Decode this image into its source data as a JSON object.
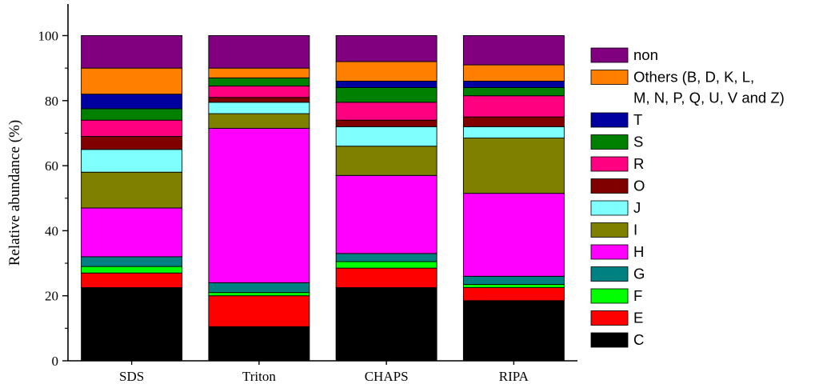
{
  "chart_data": {
    "type": "bar",
    "stacked": true,
    "title": "",
    "xlabel": "",
    "ylabel": "Relative abundance (%)",
    "ylim": [
      0,
      110
    ],
    "yticks": [
      0,
      20,
      40,
      60,
      80,
      100
    ],
    "categories": [
      "SDS",
      "Triton",
      "CHAPS",
      "RIPA"
    ],
    "legend_position": "right",
    "series": [
      {
        "name": "C",
        "color": "#000000",
        "values": [
          22.5,
          10.5,
          22.5,
          18.5
        ]
      },
      {
        "name": "E",
        "color": "#ff0000",
        "values": [
          4.5,
          9.5,
          6.0,
          4.0
        ]
      },
      {
        "name": "F",
        "color": "#00ff00",
        "values": [
          2.0,
          1.0,
          2.0,
          1.0
        ]
      },
      {
        "name": "G",
        "color": "#008080",
        "values": [
          3.0,
          3.0,
          2.5,
          2.5
        ]
      },
      {
        "name": "H",
        "color": "#ff00ff",
        "values": [
          15.0,
          47.5,
          24.0,
          25.5
        ]
      },
      {
        "name": "I",
        "color": "#808000",
        "values": [
          11.0,
          4.5,
          9.0,
          17.0
        ]
      },
      {
        "name": "J",
        "color": "#80ffff",
        "values": [
          7.0,
          3.5,
          6.0,
          3.5
        ]
      },
      {
        "name": "O",
        "color": "#800000",
        "values": [
          4.0,
          1.5,
          2.0,
          3.0
        ]
      },
      {
        "name": "R",
        "color": "#ff0080",
        "values": [
          5.0,
          3.5,
          5.5,
          6.5
        ]
      },
      {
        "name": "S",
        "color": "#008000",
        "values": [
          3.5,
          2.5,
          4.5,
          2.5
        ]
      },
      {
        "name": "T",
        "color": "#0000a0",
        "values": [
          4.5,
          0.0,
          2.0,
          2.0
        ]
      },
      {
        "name": "Others (B, D, K, L, M, N, P, Q, U, V and Z)",
        "color": "#ff8000",
        "values": [
          8.0,
          3.0,
          6.0,
          5.0
        ]
      },
      {
        "name": "non",
        "color": "#800080",
        "values": [
          10.0,
          10.0,
          8.0,
          9.0
        ]
      }
    ]
  }
}
